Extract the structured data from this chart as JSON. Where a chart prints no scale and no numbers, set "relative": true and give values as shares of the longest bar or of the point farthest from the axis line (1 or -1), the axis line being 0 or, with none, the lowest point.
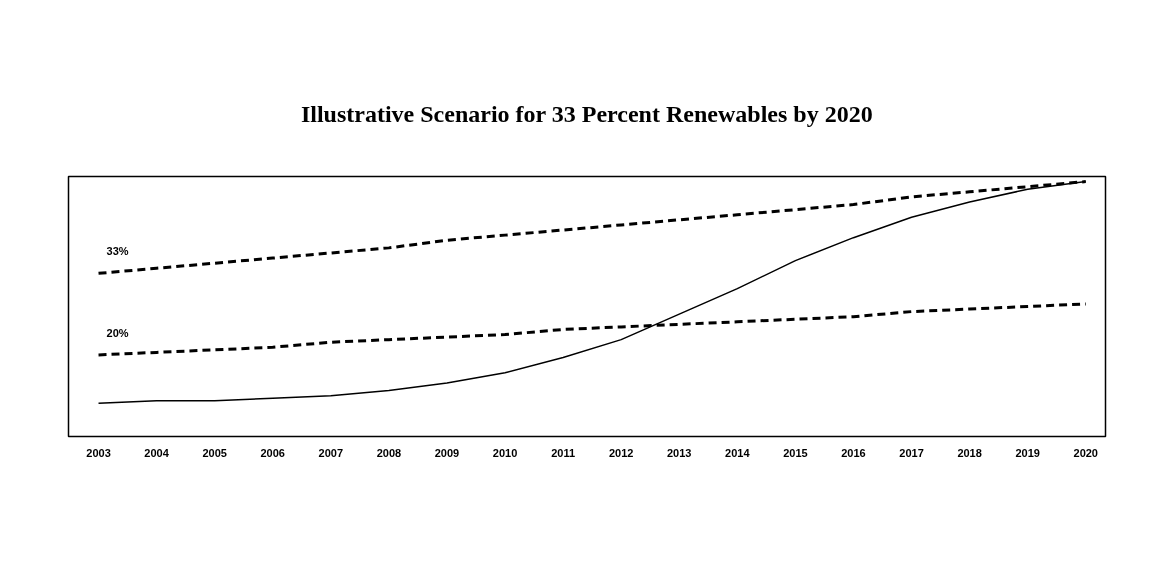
{
  "chart_data": {
    "type": "line",
    "title": "Illustrative Scenario for 33 Percent Renewables by 2020",
    "categories": [
      "2003",
      "2004",
      "2005",
      "2006",
      "2007",
      "2008",
      "2009",
      "2010",
      "2011",
      "2012",
      "2013",
      "2014",
      "2015",
      "2016",
      "2017",
      "2018",
      "2019",
      "2020"
    ],
    "relative": true,
    "grid": false,
    "marker": "none",
    "series": [
      {
        "color": "#000000",
        "line_style": "solid",
        "values": [
          0.13,
          0.14,
          0.14,
          0.15,
          0.16,
          0.18,
          0.21,
          0.25,
          0.31,
          0.38,
          0.48,
          0.58,
          0.69,
          0.78,
          0.86,
          0.92,
          0.97,
          1.0
        ]
      },
      {
        "name": "33%",
        "color": "#000000",
        "line_style": "dashed",
        "values": [
          0.64,
          0.66,
          0.68,
          0.7,
          0.72,
          0.74,
          0.77,
          0.79,
          0.81,
          0.83,
          0.85,
          0.87,
          0.89,
          0.91,
          0.94,
          0.96,
          0.98,
          1.0
        ]
      },
      {
        "name": "20%",
        "color": "#000000",
        "line_style": "dashed",
        "values": [
          0.32,
          0.33,
          0.34,
          0.35,
          0.37,
          0.38,
          0.39,
          0.4,
          0.42,
          0.43,
          0.44,
          0.45,
          0.46,
          0.47,
          0.49,
          0.5,
          0.51,
          0.52
        ]
      }
    ]
  }
}
